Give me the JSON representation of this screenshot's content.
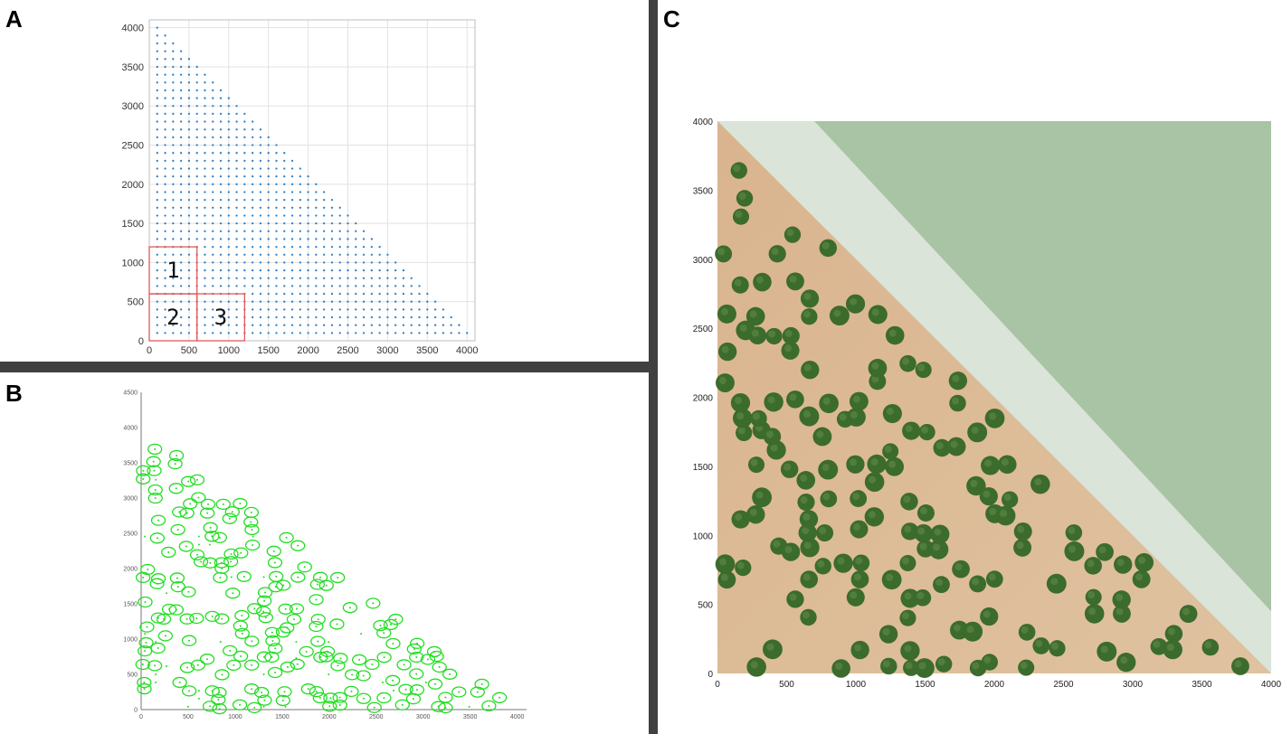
{
  "panels": {
    "a": {
      "letter": "A"
    },
    "b": {
      "letter": "B"
    },
    "c": {
      "letter": "C"
    }
  },
  "colors": {
    "dots_a": "#2f7fc4",
    "rings_b": "#22dd22",
    "tree": "#3c6b2e",
    "sand": "#e0c2a0",
    "foam": "#dfe8de",
    "water": "#a9c4a4",
    "region_box": "#e05a5a"
  },
  "chart_data": [
    {
      "panel": "A",
      "type": "scatter",
      "description_shape": "triangular grid of planting points",
      "xlim": [
        0,
        4100
      ],
      "ylim": [
        0,
        4100
      ],
      "xticks": [
        0,
        500,
        1000,
        1500,
        2000,
        2500,
        3000,
        3500,
        4000
      ],
      "yticks": [
        0,
        500,
        1000,
        1500,
        2000,
        2500,
        3000,
        3500,
        4000
      ],
      "xtick_labels": [
        "0",
        "500",
        "1000",
        "1500",
        "2000",
        "2500",
        "3000",
        "3500",
        "4000"
      ],
      "ytick_labels": [
        "0",
        "500",
        "1000",
        "1500",
        "2000",
        "2500",
        "3000",
        "3500",
        "4000"
      ],
      "grid": true,
      "grid_step": 100,
      "boundary_line": [
        [
          0,
          4100
        ],
        [
          4100,
          0
        ]
      ],
      "regions": [
        {
          "label": "1",
          "x": [
            0,
            600
          ],
          "y": [
            600,
            1200
          ]
        },
        {
          "label": "2",
          "x": [
            0,
            600
          ],
          "y": [
            0,
            600
          ]
        },
        {
          "label": "3",
          "x": [
            600,
            1200
          ],
          "y": [
            0,
            600
          ]
        }
      ]
    },
    {
      "panel": "B",
      "type": "scatter",
      "xlim": [
        0,
        4100
      ],
      "ylim": [
        0,
        4500
      ],
      "xticks": [
        0,
        500,
        1000,
        1500,
        2000,
        2500,
        3000,
        3500,
        4000
      ],
      "yticks": [
        0,
        500,
        1000,
        1500,
        2000,
        2500,
        3000,
        3500,
        4000,
        4500
      ],
      "xtick_labels": [
        "0",
        "500",
        "1000",
        "1500",
        "2000",
        "2500",
        "3000",
        "3500",
        "4000"
      ],
      "ytick_labels": [
        "0",
        "500",
        "1000",
        "1500",
        "2000",
        "2500",
        "3000",
        "3500",
        "4000",
        "4500"
      ],
      "grid": false
    },
    {
      "panel": "C",
      "type": "scatter",
      "xlim": [
        0,
        4000
      ],
      "ylim": [
        0,
        4000
      ],
      "xticks": [
        0,
        500,
        1000,
        1500,
        2000,
        2500,
        3000,
        3500,
        4000
      ],
      "yticks": [
        0,
        500,
        1000,
        1500,
        2000,
        2500,
        3000,
        3500,
        4000
      ],
      "xtick_labels": [
        "0",
        "500",
        "1000",
        "1500",
        "2000",
        "2500",
        "3000",
        "3500",
        "4000"
      ],
      "ytick_labels": [
        "0",
        "500",
        "1000",
        "1500",
        "2000",
        "2500",
        "3000",
        "3500",
        "4000"
      ],
      "grid": false,
      "shoreline": [
        [
          0,
          4000
        ],
        [
          4000,
          0
        ]
      ]
    }
  ]
}
